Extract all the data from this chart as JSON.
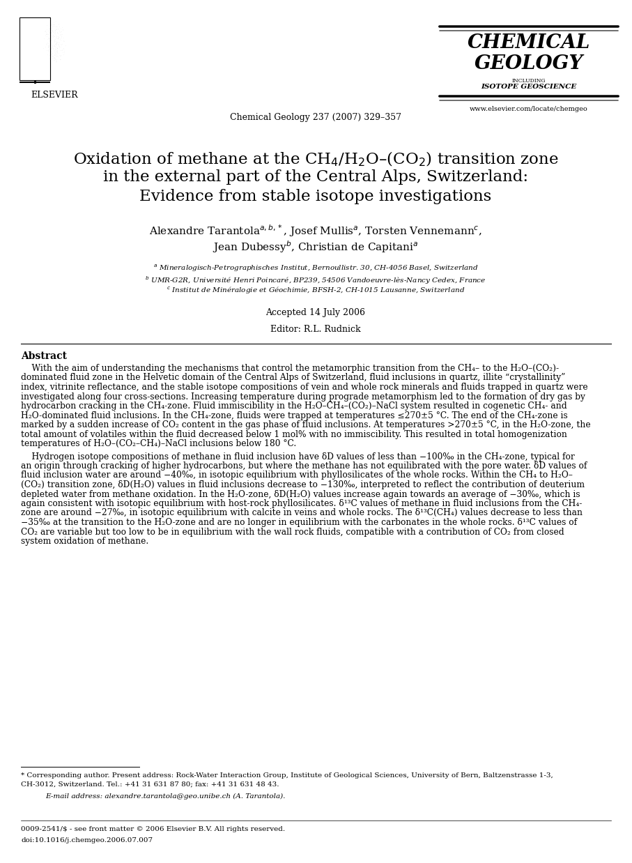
{
  "bg_color": "#ffffff",
  "journal_name_line1": "CHEMICAL",
  "journal_name_line2": "GEOLOGY",
  "journal_subtitle": "INCLUDING",
  "journal_subtitle2": "ISOTOPE GEOSCIENCE",
  "journal_url": "www.elsevier.com/locate/chemgeo",
  "publisher": "ELSEVIER",
  "journal_ref": "Chemical Geology 237 (2007) 329–357",
  "title_line1": "Oxidation of methane at the CH$_4$/H$_2$O–(CO$_2$) transition zone",
  "title_line2": "in the external part of the Central Alps, Switzerland:",
  "title_line3": "Evidence from stable isotope investigations",
  "authors_line1": "Alexandre Tarantola$^{a,b,*}$, Josef Mullis$^{a}$, Torsten Vennemann$^{c}$,",
  "authors_line2": "Jean Dubessy$^{b}$, Christian de Capitani$^{a}$",
  "aff_a": "a Mineralogisch-Petrographisches Institut, Bernoullistr. 30, CH-4056 Basel, Switzerland",
  "aff_b": "b UMR-G2R, Université Henri Poincaré, BP239, 54506 Vandoeuvre-lès-Nancy Cedex, France",
  "aff_c": "c Institut de Minéralogie et Géochimie, BFSH-2, CH-1015 Lausanne, Switzerland",
  "accepted": "Accepted 14 July 2006",
  "editor": "Editor: R.L. Rudnick",
  "abstract_title": "Abstract",
  "footnote_star": "* Corresponding author. Present address: Rock-Water Interaction Group, Institute of Geological Sciences, University of Bern, Baltzenstrasse 1-3,\nCH-3012, Switzerland. Tel.: +41 31 631 87 80; fax: +41 31 631 48 43.",
  "footnote_email": "E-mail address: alexandre.tarantola@geo.unibe.ch (A. Tarantola).",
  "footer_issn": "0009-2541/$ - see front matter © 2006 Elsevier B.V. All rights reserved.",
  "footer_doi": "doi:10.1016/j.chemgeo.2006.07.007"
}
